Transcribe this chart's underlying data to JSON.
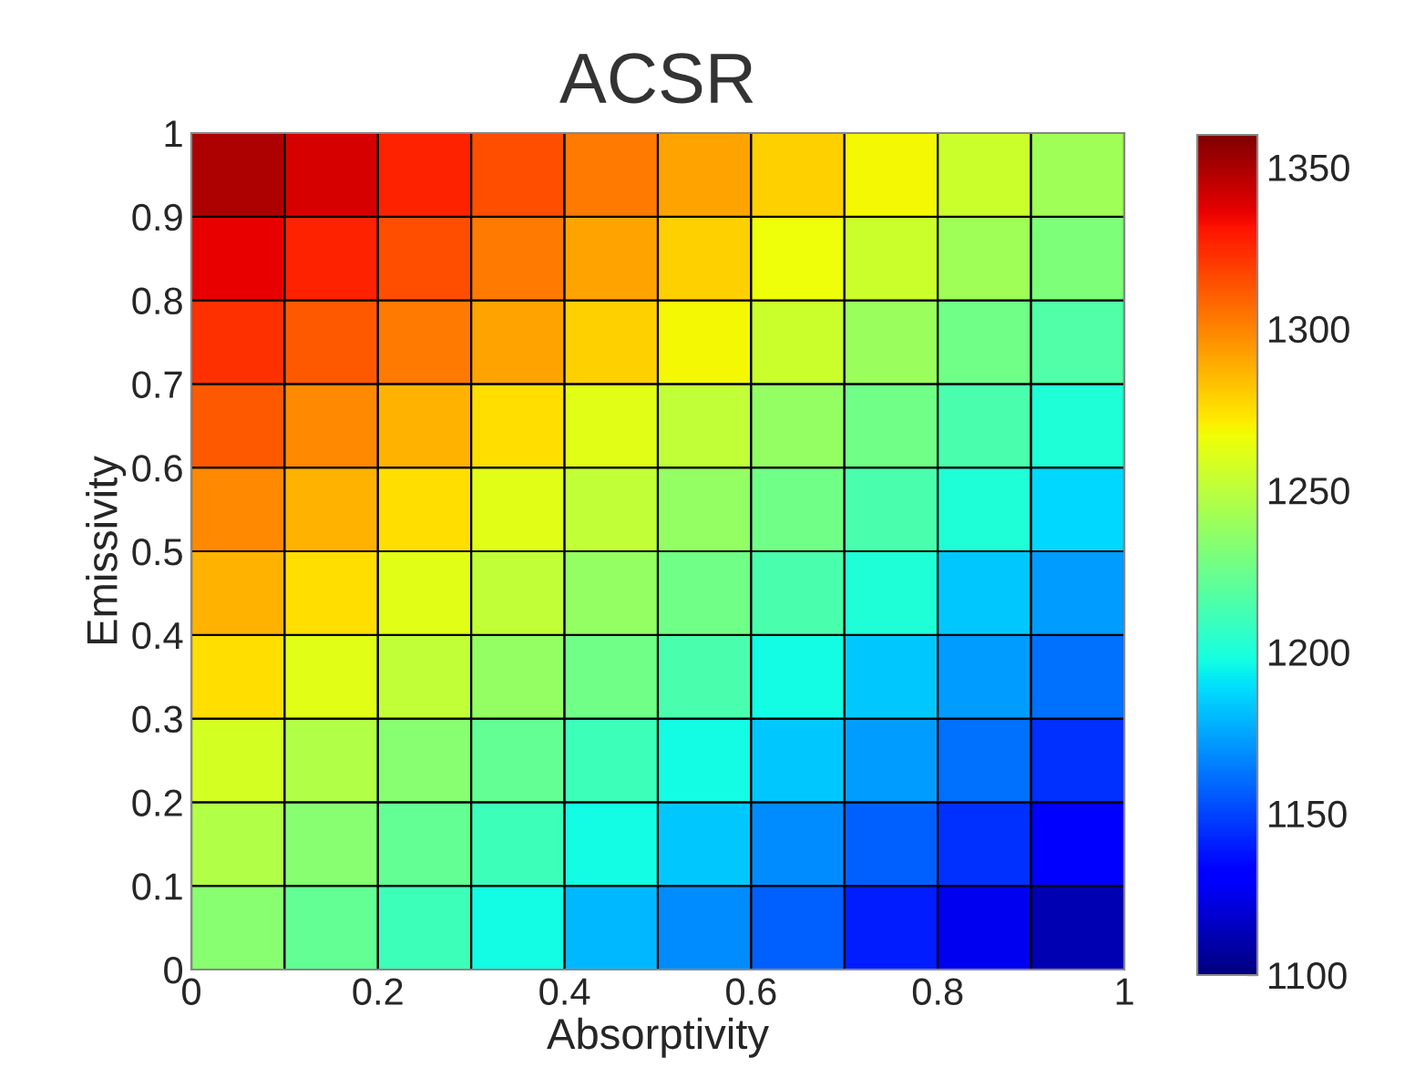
{
  "chart_data": {
    "type": "heatmap",
    "title": "ACSR",
    "xlabel": "Absorptivity",
    "ylabel": "Emissivity",
    "xlim": [
      0,
      1
    ],
    "ylim": [
      0,
      1
    ],
    "xticks": [
      0,
      0.2,
      0.4,
      0.6,
      0.8,
      1
    ],
    "yticks": [
      0,
      0.1,
      0.2,
      0.3,
      0.4,
      0.5,
      0.6,
      0.7,
      0.8,
      0.9,
      1
    ],
    "clim": [
      1100,
      1360
    ],
    "cticks": [
      1100,
      1150,
      1200,
      1250,
      1300,
      1350
    ],
    "cells": [
      [
        1349,
        1340,
        1327,
        1315,
        1303,
        1291,
        1279,
        1268,
        1255,
        1242
      ],
      [
        1336,
        1327,
        1315,
        1303,
        1291,
        1279,
        1266,
        1255,
        1242,
        1230
      ],
      [
        1323,
        1312,
        1303,
        1291,
        1279,
        1268,
        1255,
        1240,
        1226,
        1216
      ],
      [
        1312,
        1299,
        1287,
        1275,
        1262,
        1252,
        1238,
        1226,
        1214,
        1201
      ],
      [
        1299,
        1287,
        1275,
        1262,
        1252,
        1238,
        1226,
        1214,
        1201,
        1188
      ],
      [
        1287,
        1275,
        1262,
        1252,
        1238,
        1226,
        1214,
        1201,
        1184,
        1173
      ],
      [
        1275,
        1262,
        1252,
        1238,
        1226,
        1214,
        1197,
        1184,
        1173,
        1161
      ],
      [
        1258,
        1247,
        1234,
        1222,
        1210,
        1197,
        1184,
        1173,
        1161,
        1145
      ],
      [
        1247,
        1234,
        1222,
        1210,
        1197,
        1184,
        1169,
        1157,
        1145,
        1132
      ],
      [
        1234,
        1222,
        1210,
        1197,
        1180,
        1169,
        1157,
        1140,
        1126,
        1112
      ]
    ]
  }
}
